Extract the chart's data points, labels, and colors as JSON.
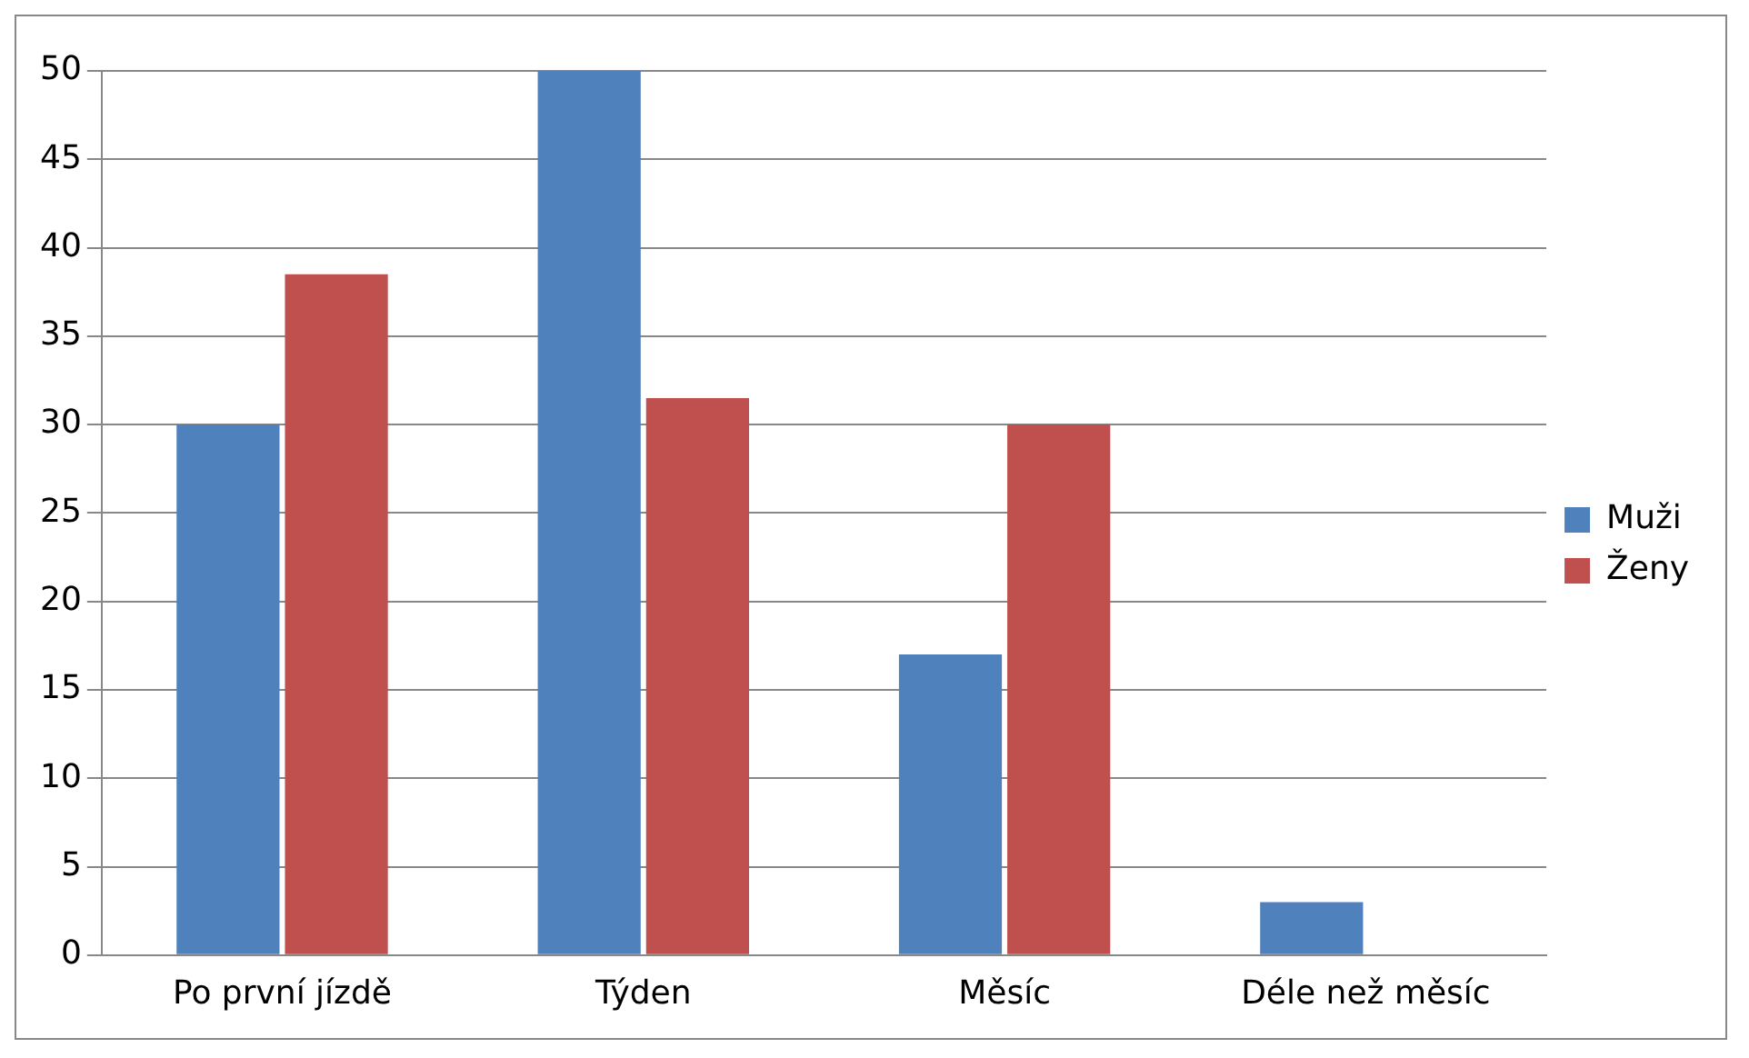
{
  "chart_data": {
    "type": "bar",
    "categories": [
      "Po první jízdě",
      "Týden",
      "Měsíc",
      "Déle než měsíc"
    ],
    "series": [
      {
        "name": "Muži",
        "color": "#4f81bd",
        "values": [
          30,
          50,
          17,
          3
        ]
      },
      {
        "name": "Ženy",
        "color": "#c0504d",
        "values": [
          38.5,
          31.5,
          30,
          0
        ]
      }
    ],
    "ylim": [
      0,
      50
    ],
    "yticks": [
      0,
      5,
      10,
      15,
      20,
      25,
      30,
      35,
      40,
      45,
      50
    ],
    "grid": "y",
    "legend": "right"
  }
}
